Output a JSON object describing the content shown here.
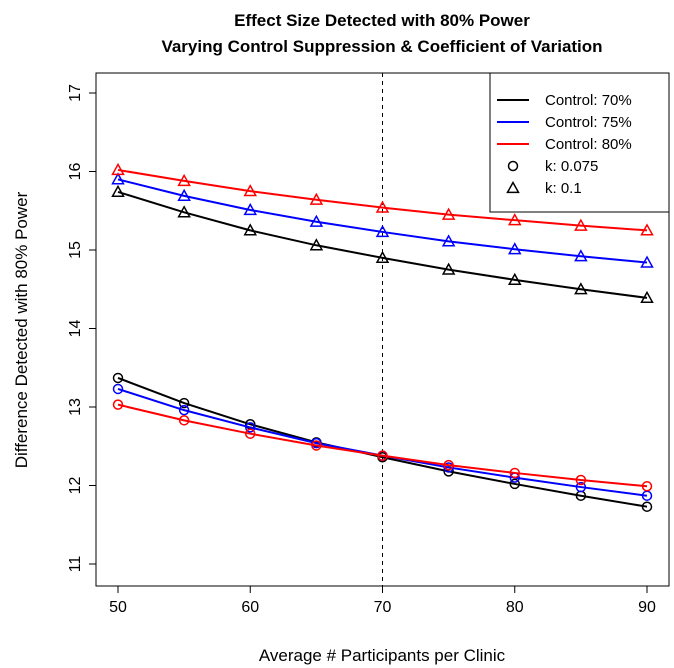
{
  "chart_data": {
    "type": "line",
    "title": "Effect Size Detected with 80% Power",
    "subtitle": "Varying Control Suppression & Coefficient of Variation",
    "xlabel": "Average # Participants per Clinic",
    "ylabel": "Difference Detected with 80% Power",
    "xlim": [
      50,
      90
    ],
    "ylim": [
      11,
      17
    ],
    "xticks": [
      50,
      60,
      70,
      80,
      90
    ],
    "yticks": [
      11,
      12,
      13,
      14,
      15,
      16,
      17
    ],
    "reference_line": {
      "x": 70,
      "style": "dashed"
    },
    "grid": false,
    "legend_position": "top-right",
    "legend": [
      {
        "label": "Control: 70%",
        "kind": "line",
        "color": "#000000"
      },
      {
        "label": "Control: 75%",
        "kind": "line",
        "color": "#0000ff"
      },
      {
        "label": "Control: 80%",
        "kind": "line",
        "color": "#ff0000"
      },
      {
        "label": "k: 0.075",
        "kind": "marker",
        "marker": "circle"
      },
      {
        "label": "k: 0.1",
        "kind": "marker",
        "marker": "triangle"
      }
    ],
    "x": [
      50,
      55,
      60,
      65,
      70,
      75,
      80,
      85,
      90
    ],
    "series": [
      {
        "control": "70%",
        "k": "0.1",
        "marker": "triangle",
        "color": "#000000",
        "values": [
          15.74,
          15.48,
          15.25,
          15.06,
          14.9,
          14.75,
          14.62,
          14.5,
          14.39
        ]
      },
      {
        "control": "75%",
        "k": "0.1",
        "marker": "triangle",
        "color": "#0000ff",
        "values": [
          15.9,
          15.69,
          15.51,
          15.36,
          15.23,
          15.11,
          15.01,
          14.92,
          14.84
        ]
      },
      {
        "control": "80%",
        "k": "0.1",
        "marker": "triangle",
        "color": "#ff0000",
        "values": [
          16.02,
          15.88,
          15.75,
          15.64,
          15.54,
          15.45,
          15.38,
          15.31,
          15.25
        ]
      },
      {
        "control": "70%",
        "k": "0.075",
        "marker": "circle",
        "color": "#000000",
        "values": [
          13.37,
          13.05,
          12.78,
          12.55,
          12.36,
          12.18,
          12.02,
          11.87,
          11.73
        ]
      },
      {
        "control": "75%",
        "k": "0.075",
        "marker": "circle",
        "color": "#0000ff",
        "values": [
          13.23,
          12.96,
          12.74,
          12.54,
          12.38,
          12.23,
          12.1,
          11.98,
          11.87
        ]
      },
      {
        "control": "80%",
        "k": "0.075",
        "marker": "circle",
        "color": "#ff0000",
        "values": [
          13.03,
          12.83,
          12.66,
          12.51,
          12.38,
          12.26,
          12.16,
          12.07,
          11.99
        ]
      }
    ]
  }
}
